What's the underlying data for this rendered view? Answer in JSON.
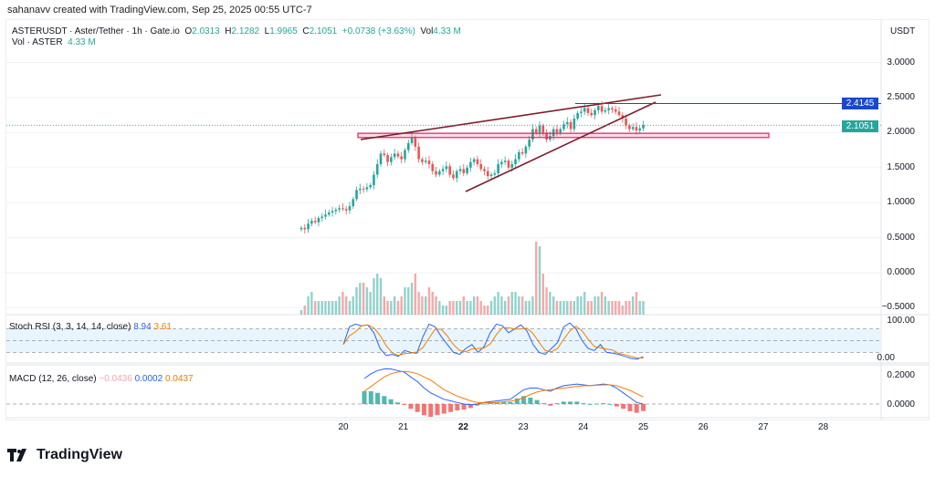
{
  "credit": "sahanavv created with TradingView.com, Sep 25, 2025 00:55 UTC-7",
  "legend": {
    "symbol": "ASTERUSDT · Aster/Tether · 1h · Gate.io",
    "o_label": "O",
    "o": "2.0313",
    "h_label": "H",
    "h": "2.1282",
    "l_label": "L",
    "l": "1.9965",
    "c_label": "C",
    "c": "2.1051",
    "change": "+0.0738 (+3.63%)",
    "vol_label": "Vol",
    "vol": "4.33 M",
    "vol_title": "Vol · ASTER",
    "vol_value": "4.33 M"
  },
  "stoch": {
    "title": "Stoch RSI (3, 3, 14, 14, close)",
    "k": "8.94",
    "d": "3.61",
    "axis": [
      "100.00",
      "0.00"
    ]
  },
  "macd": {
    "title": "MACD (12, 26, close)",
    "hist": "−0.0436",
    "macd": "0.0002",
    "signal": "0.0437",
    "axis": [
      "0.2000",
      "0.0000"
    ]
  },
  "currency": "USDT",
  "price_axis": [
    "3.0000",
    "2.5000",
    "2.0000",
    "1.5000",
    "1.0000",
    "0.5000",
    "0.0000",
    "−0.5000"
  ],
  "tags": {
    "level": "2.4145",
    "last": "2.1051"
  },
  "x_labels": [
    "20",
    "21",
    "22",
    "23",
    "24",
    "25",
    "26",
    "27",
    "28"
  ],
  "logo": "TradingView",
  "colors": {
    "up": "#26a69a",
    "down": "#ef5350",
    "trend": "#7b1f2a",
    "zone": "#e91e63",
    "level": "#1848cc"
  },
  "chart_data": {
    "type": "candlestick",
    "title": "ASTERUSDT 1h",
    "ylim": [
      -0.5,
      3.0
    ],
    "x_range_days": [
      19.3,
      25.0
    ],
    "closes": [
      0.64,
      0.62,
      0.7,
      0.74,
      0.72,
      0.78,
      0.8,
      0.83,
      0.86,
      0.88,
      0.9,
      0.92,
      0.91,
      0.89,
      0.95,
      1.05,
      1.18,
      1.2,
      1.19,
      1.22,
      1.25,
      1.4,
      1.55,
      1.7,
      1.68,
      1.58,
      1.65,
      1.7,
      1.66,
      1.62,
      1.75,
      1.85,
      1.92,
      1.8,
      1.62,
      1.58,
      1.6,
      1.55,
      1.45,
      1.4,
      1.45,
      1.48,
      1.52,
      1.4,
      1.35,
      1.45,
      1.48,
      1.42,
      1.5,
      1.58,
      1.62,
      1.55,
      1.48,
      1.45,
      1.38,
      1.4,
      1.42,
      1.55,
      1.58,
      1.6,
      1.5,
      1.55,
      1.62,
      1.72,
      1.7,
      1.8,
      1.9,
      2.05,
      2.0,
      2.1,
      2.0,
      1.9,
      1.95,
      2.05,
      2.0,
      2.05,
      2.12,
      2.15,
      2.05,
      2.2,
      2.28,
      2.3,
      2.35,
      2.28,
      2.25,
      2.32,
      2.38,
      2.3,
      2.32,
      2.35,
      2.33,
      2.3,
      2.25,
      2.2,
      2.1,
      2.05,
      2.08,
      2.03,
      2.06,
      2.11
    ],
    "volumes": [
      1,
      2,
      4,
      5,
      3,
      3,
      3,
      3,
      3,
      3,
      3,
      4,
      5,
      4,
      3,
      4,
      6,
      7,
      7,
      6,
      5,
      8,
      9,
      8,
      4,
      3,
      3,
      4,
      3,
      4,
      6,
      6,
      7,
      9,
      5,
      4,
      4,
      6,
      5,
      4,
      3,
      2,
      2,
      3,
      3,
      3,
      3,
      4,
      3,
      3,
      4,
      4,
      3,
      2,
      2,
      3,
      4,
      5,
      4,
      3,
      4,
      5,
      5,
      4,
      4,
      3,
      3,
      4,
      16,
      15,
      9,
      6,
      5,
      4,
      3,
      3,
      3,
      3,
      3,
      3,
      4,
      4,
      5,
      3,
      3,
      4,
      4,
      5,
      4,
      3,
      3,
      3,
      3,
      2,
      3,
      3,
      4,
      5,
      3,
      3
    ],
    "stoch_k": [
      40,
      85,
      92,
      88,
      90,
      70,
      30,
      12,
      15,
      10,
      25,
      20,
      18,
      60,
      92,
      85,
      60,
      40,
      20,
      15,
      30,
      40,
      20,
      35,
      70,
      92,
      88,
      70,
      80,
      90,
      75,
      40,
      20,
      15,
      30,
      45,
      85,
      95,
      80,
      50,
      30,
      25,
      40,
      20,
      18,
      15,
      10,
      5,
      3,
      9
    ],
    "macd_line": [
      0.16,
      0.19,
      0.21,
      0.22,
      0.22,
      0.21,
      0.2,
      0.17,
      0.14,
      0.1,
      0.07,
      0.05,
      0.03,
      0.02,
      0.01,
      0.0,
      -0.005,
      0.0,
      0.01,
      0.015,
      0.02,
      0.025,
      0.03,
      0.06,
      0.09,
      0.1,
      0.1,
      0.09,
      0.08,
      0.1,
      0.115,
      0.12,
      0.125,
      0.12,
      0.115,
      0.12,
      0.125,
      0.12,
      0.1,
      0.07,
      0.04,
      0.01,
      0.0
    ],
    "macd_signal": [
      0.08,
      0.11,
      0.14,
      0.17,
      0.19,
      0.2,
      0.205,
      0.2,
      0.19,
      0.17,
      0.15,
      0.12,
      0.09,
      0.07,
      0.05,
      0.035,
      0.02,
      0.01,
      0.008,
      0.008,
      0.01,
      0.014,
      0.018,
      0.025,
      0.04,
      0.06,
      0.075,
      0.085,
      0.09,
      0.095,
      0.1,
      0.105,
      0.11,
      0.115,
      0.115,
      0.118,
      0.12,
      0.12,
      0.115,
      0.1,
      0.085,
      0.065,
      0.044
    ]
  }
}
